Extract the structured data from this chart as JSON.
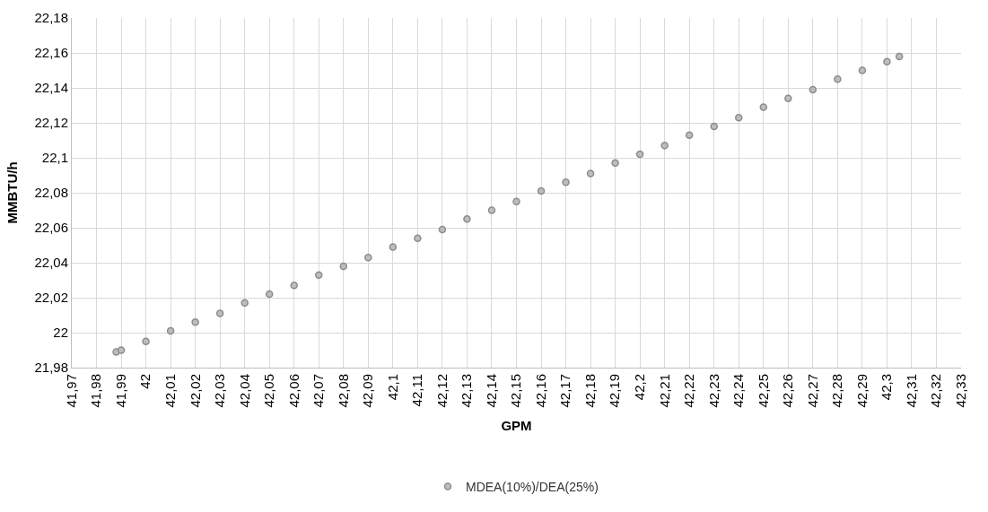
{
  "chart_data": {
    "type": "scatter",
    "xlabel": "GPM",
    "ylabel": "MMBTU/h",
    "x": [
      41.988,
      41.99,
      42.0,
      42.01,
      42.02,
      42.03,
      42.04,
      42.05,
      42.06,
      42.07,
      42.08,
      42.09,
      42.1,
      42.11,
      42.12,
      42.13,
      42.14,
      42.15,
      42.16,
      42.17,
      42.18,
      42.19,
      42.2,
      42.21,
      42.22,
      42.23,
      42.24,
      42.25,
      42.26,
      42.27,
      42.28,
      42.29,
      42.3,
      42.305
    ],
    "series": [
      {
        "name": "MDEA(10%)/DEA(25%)",
        "color": "#8c8c8c",
        "values": [
          21.989,
          21.99,
          21.995,
          22.001,
          22.006,
          22.011,
          22.017,
          22.022,
          22.027,
          22.033,
          22.038,
          22.043,
          22.049,
          22.054,
          22.059,
          22.065,
          22.07,
          22.075,
          22.081,
          22.086,
          22.091,
          22.097,
          22.102,
          22.107,
          22.113,
          22.118,
          22.123,
          22.129,
          22.134,
          22.139,
          22.145,
          22.15,
          22.155,
          22.158
        ]
      }
    ],
    "xlim": [
      41.97,
      42.33
    ],
    "xticks": [
      {
        "value": 41.97,
        "label": "41,97"
      },
      {
        "value": 41.98,
        "label": "41,98"
      },
      {
        "value": 41.99,
        "label": "41,99"
      },
      {
        "value": 42,
        "label": "42"
      },
      {
        "value": 42.01,
        "label": "42,01"
      },
      {
        "value": 42.02,
        "label": "42,02"
      },
      {
        "value": 42.03,
        "label": "42,03"
      },
      {
        "value": 42.04,
        "label": "42,04"
      },
      {
        "value": 42.05,
        "label": "42,05"
      },
      {
        "value": 42.06,
        "label": "42,06"
      },
      {
        "value": 42.07,
        "label": "42,07"
      },
      {
        "value": 42.08,
        "label": "42,08"
      },
      {
        "value": 42.09,
        "label": "42,09"
      },
      {
        "value": 42.1,
        "label": "42,1"
      },
      {
        "value": 42.11,
        "label": "42,11"
      },
      {
        "value": 42.12,
        "label": "42,12"
      },
      {
        "value": 42.13,
        "label": "42,13"
      },
      {
        "value": 42.14,
        "label": "42,14"
      },
      {
        "value": 42.15,
        "label": "42,15"
      },
      {
        "value": 42.16,
        "label": "42,16"
      },
      {
        "value": 42.17,
        "label": "42,17"
      },
      {
        "value": 42.18,
        "label": "42,18"
      },
      {
        "value": 42.19,
        "label": "42,19"
      },
      {
        "value": 42.2,
        "label": "42,2"
      },
      {
        "value": 42.21,
        "label": "42,21"
      },
      {
        "value": 42.22,
        "label": "42,22"
      },
      {
        "value": 42.23,
        "label": "42,23"
      },
      {
        "value": 42.24,
        "label": "42,24"
      },
      {
        "value": 42.25,
        "label": "42,25"
      },
      {
        "value": 42.26,
        "label": "42,26"
      },
      {
        "value": 42.27,
        "label": "42,27"
      },
      {
        "value": 42.28,
        "label": "42,28"
      },
      {
        "value": 42.29,
        "label": "42,29"
      },
      {
        "value": 42.3,
        "label": "42,3"
      },
      {
        "value": 42.31,
        "label": "42,31"
      },
      {
        "value": 42.32,
        "label": "42,32"
      },
      {
        "value": 42.33,
        "label": "42,33"
      }
    ],
    "ylim": [
      21.98,
      22.18
    ],
    "yticks": [
      {
        "value": 21.98,
        "label": "21,98"
      },
      {
        "value": 22,
        "label": "22"
      },
      {
        "value": 22.02,
        "label": "22,02"
      },
      {
        "value": 22.04,
        "label": "22,04"
      },
      {
        "value": 22.06,
        "label": "22,06"
      },
      {
        "value": 22.08,
        "label": "22,08"
      },
      {
        "value": 22.1,
        "label": "22,1"
      },
      {
        "value": 22.12,
        "label": "22,12"
      },
      {
        "value": 22.14,
        "label": "22,14"
      },
      {
        "value": 22.16,
        "label": "22,16"
      },
      {
        "value": 22.18,
        "label": "22,18"
      }
    ],
    "grid": true,
    "legend": "bottom",
    "marker": "circle"
  }
}
